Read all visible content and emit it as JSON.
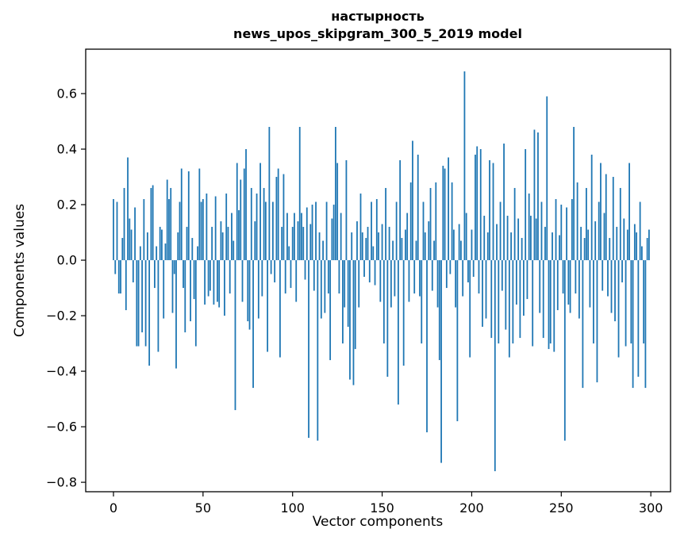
{
  "chart_data": {
    "type": "bar",
    "title": "настырность",
    "subtitle": "news_upos_skipgram_300_5_2019 model",
    "xlabel": "Vector components",
    "ylabel": "Components values",
    "bar_color": "#1f77b4",
    "background_color": "#ffffff",
    "legend": "none",
    "grid": false,
    "xlim": [
      -15.5,
      311
    ],
    "ylim": [
      -0.834,
      0.76
    ],
    "xticks": [
      0,
      50,
      100,
      150,
      200,
      250,
      300
    ],
    "yticks": [
      -0.8,
      -0.6,
      -0.4,
      -0.2,
      0.0,
      0.2,
      0.4,
      0.6
    ],
    "x_start": 0,
    "values": [
      0.22,
      -0.05,
      0.21,
      -0.12,
      -0.12,
      0.08,
      0.26,
      -0.18,
      0.37,
      0.15,
      0.11,
      -0.08,
      0.19,
      -0.31,
      -0.31,
      0.05,
      -0.26,
      0.22,
      -0.31,
      0.1,
      -0.38,
      0.26,
      0.27,
      -0.1,
      0.05,
      -0.33,
      0.12,
      0.11,
      -0.21,
      0.06,
      0.29,
      0.22,
      0.26,
      -0.19,
      -0.05,
      -0.39,
      0.1,
      0.21,
      0.33,
      -0.1,
      -0.26,
      0.12,
      0.32,
      -0.22,
      0.08,
      -0.14,
      -0.31,
      0.05,
      0.33,
      0.21,
      0.22,
      -0.16,
      0.24,
      -0.13,
      -0.11,
      0.12,
      -0.16,
      0.23,
      -0.15,
      -0.17,
      0.14,
      0.1,
      -0.2,
      0.24,
      0.12,
      -0.12,
      0.17,
      0.07,
      -0.54,
      0.35,
      0.18,
      0.29,
      -0.15,
      0.33,
      0.4,
      -0.22,
      -0.25,
      0.26,
      -0.46,
      0.14,
      0.24,
      -0.21,
      0.35,
      -0.13,
      0.26,
      0.21,
      -0.33,
      0.48,
      -0.05,
      0.21,
      -0.08,
      0.3,
      0.33,
      -0.35,
      0.12,
      0.31,
      -0.12,
      0.17,
      0.05,
      -0.1,
      0.12,
      0.17,
      -0.15,
      0.14,
      0.48,
      0.17,
      0.12,
      -0.07,
      0.19,
      -0.64,
      0.13,
      0.2,
      -0.11,
      0.21,
      -0.65,
      0.1,
      -0.21,
      0.07,
      -0.19,
      0.21,
      -0.12,
      -0.36,
      0.15,
      0.2,
      0.48,
      0.35,
      -0.12,
      0.17,
      -0.3,
      -0.17,
      0.36,
      -0.24,
      -0.43,
      0.1,
      -0.45,
      -0.32,
      0.14,
      -0.17,
      0.24,
      0.1,
      -0.06,
      0.08,
      0.12,
      -0.08,
      0.21,
      0.05,
      -0.09,
      0.22,
      0.1,
      -0.15,
      0.13,
      -0.3,
      0.26,
      -0.42,
      0.12,
      -0.17,
      0.07,
      -0.13,
      0.21,
      -0.52,
      0.36,
      0.08,
      -0.38,
      0.11,
      0.17,
      -0.15,
      0.28,
      0.43,
      -0.12,
      0.07,
      0.38,
      -0.13,
      -0.3,
      0.21,
      0.1,
      -0.62,
      0.14,
      0.26,
      -0.11,
      0.07,
      0.28,
      -0.17,
      -0.36,
      -0.73,
      0.34,
      0.33,
      -0.1,
      0.37,
      -0.05,
      0.28,
      0.11,
      -0.17,
      -0.58,
      0.13,
      0.07,
      -0.13,
      0.68,
      0.17,
      -0.08,
      -0.35,
      0.11,
      -0.06,
      0.38,
      0.41,
      -0.12,
      0.4,
      -0.24,
      0.16,
      -0.21,
      0.1,
      0.36,
      -0.28,
      0.35,
      -0.76,
      0.13,
      -0.3,
      0.21,
      -0.11,
      0.42,
      -0.25,
      0.16,
      -0.35,
      0.1,
      -0.3,
      0.26,
      -0.16,
      0.15,
      -0.28,
      0.08,
      -0.2,
      0.4,
      -0.14,
      0.24,
      0.16,
      -0.31,
      0.47,
      0.15,
      0.46,
      -0.19,
      0.21,
      -0.28,
      0.12,
      0.59,
      -0.32,
      -0.3,
      0.1,
      -0.33,
      0.22,
      -0.18,
      0.09,
      0.2,
      -0.12,
      -0.65,
      0.19,
      -0.16,
      -0.19,
      0.22,
      0.48,
      -0.12,
      0.28,
      -0.21,
      0.12,
      -0.46,
      0.08,
      0.26,
      0.11,
      -0.17,
      0.38,
      -0.3,
      0.14,
      -0.44,
      0.21,
      0.35,
      -0.11,
      0.17,
      0.31,
      -0.13,
      0.08,
      -0.19,
      0.3,
      -0.22,
      0.12,
      -0.35,
      0.26,
      -0.08,
      0.15,
      -0.31,
      0.11,
      0.35,
      -0.3,
      -0.46,
      0.13,
      0.1,
      -0.42,
      0.21,
      0.05,
      -0.3,
      -0.46,
      0.08,
      0.11
    ]
  }
}
